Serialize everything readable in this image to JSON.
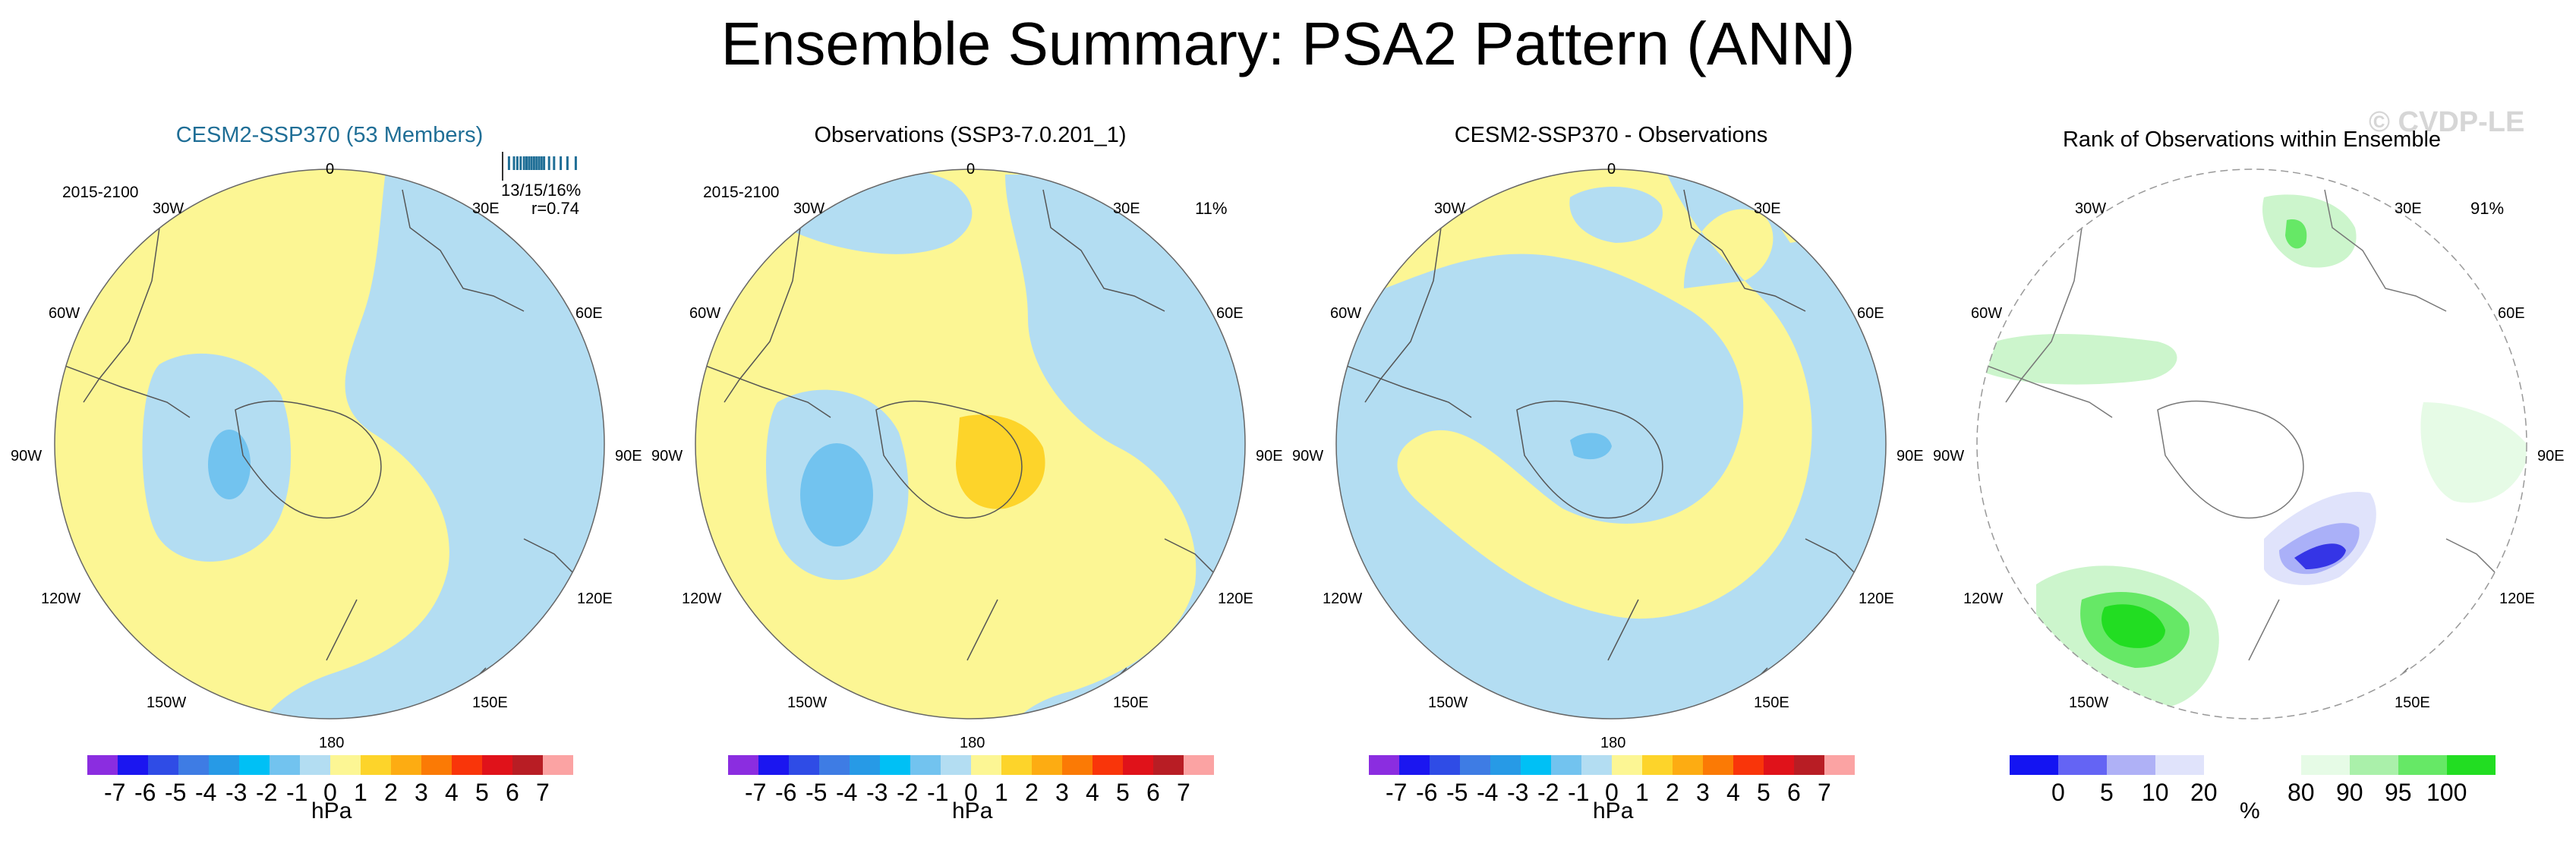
{
  "title": "Ensemble Summary: PSA2 Pattern (ANN)",
  "watermark": "© CVDP-LE",
  "lon_labels": [
    "0",
    "30E",
    "60E",
    "90E",
    "120E",
    "150E",
    "180",
    "150W",
    "120W",
    "90W",
    "60W",
    "30W"
  ],
  "colors": {
    "pos_light": "#fcf694",
    "neg_light": "#b3ddf2",
    "neg_mid": "#72c3ef",
    "pos_mid": "#fdd42a",
    "green_light": "#ccf5cc",
    "green_dark": "#22dd22",
    "blue_light": "#aab0f8",
    "blue_dark": "#3535e6",
    "title_blue": "#1f6e96"
  },
  "hpa_colorbar": {
    "colors": [
      "#8b2de0",
      "#1b16f0",
      "#2f4ce6",
      "#3e7ce4",
      "#279ae6",
      "#00c0f5",
      "#72c3ef",
      "#b3ddf2",
      "#fcf694",
      "#fdd42a",
      "#fdac12",
      "#fb7a05",
      "#f9350a",
      "#e0121a",
      "#b81d24",
      "#fba3a3"
    ],
    "ticks": [
      "-7",
      "-6",
      "-5",
      "-4",
      "-3",
      "-2",
      "-1",
      "0",
      "1",
      "2",
      "3",
      "4",
      "5",
      "6",
      "7"
    ],
    "units": "hPa"
  },
  "rank_colorbar": {
    "colors": [
      "#1414f2",
      "#6464f4",
      "#afb1f6",
      "#e0e3fb",
      "#ffffff",
      "#ffffff",
      "#e6fbe6",
      "#aaf0aa",
      "#66e866",
      "#22dd22"
    ],
    "ticks": [
      "0",
      "5",
      "10",
      "20",
      "80",
      "90",
      "95",
      "100"
    ],
    "units": "%"
  },
  "panels": [
    {
      "title": "CESM2-SSP370 (53 Members)",
      "period": "2015-2100",
      "inset_stats": "13/15/16%",
      "inset_r": "r=0.74",
      "inset_ticks": [
        0.04,
        0.1,
        0.14,
        0.18,
        0.22,
        0.25,
        0.28,
        0.31,
        0.34,
        0.37,
        0.4,
        0.43,
        0.46,
        0.52,
        0.58,
        0.66,
        0.74,
        0.84
      ]
    },
    {
      "title": "Observations (SSP3-7.0.201_1)",
      "period": "2015-2100",
      "pct": "11%"
    },
    {
      "title": "CESM2-SSP370 - Observations"
    },
    {
      "title": "Rank of Observations within Ensemble",
      "pct": "91%"
    }
  ]
}
